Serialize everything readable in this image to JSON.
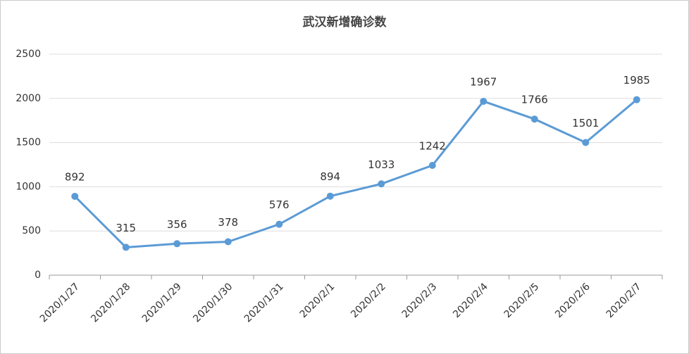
{
  "chart_data": {
    "type": "line",
    "title": "武汉新增确诊数",
    "categories": [
      "2020/1/27",
      "2020/1/28",
      "2020/1/29",
      "2020/1/30",
      "2020/1/31",
      "2020/2/1",
      "2020/2/2",
      "2020/2/3",
      "2020/2/4",
      "2020/2/5",
      "2020/2/6",
      "2020/2/7"
    ],
    "values": [
      892,
      315,
      356,
      378,
      576,
      894,
      1033,
      1242,
      1967,
      1766,
      1501,
      1985
    ],
    "color": "#5b9bd5",
    "ylim": [
      0,
      2500
    ],
    "yticks": [
      0,
      500,
      1000,
      1500,
      2000,
      2500
    ],
    "grid": true
  }
}
